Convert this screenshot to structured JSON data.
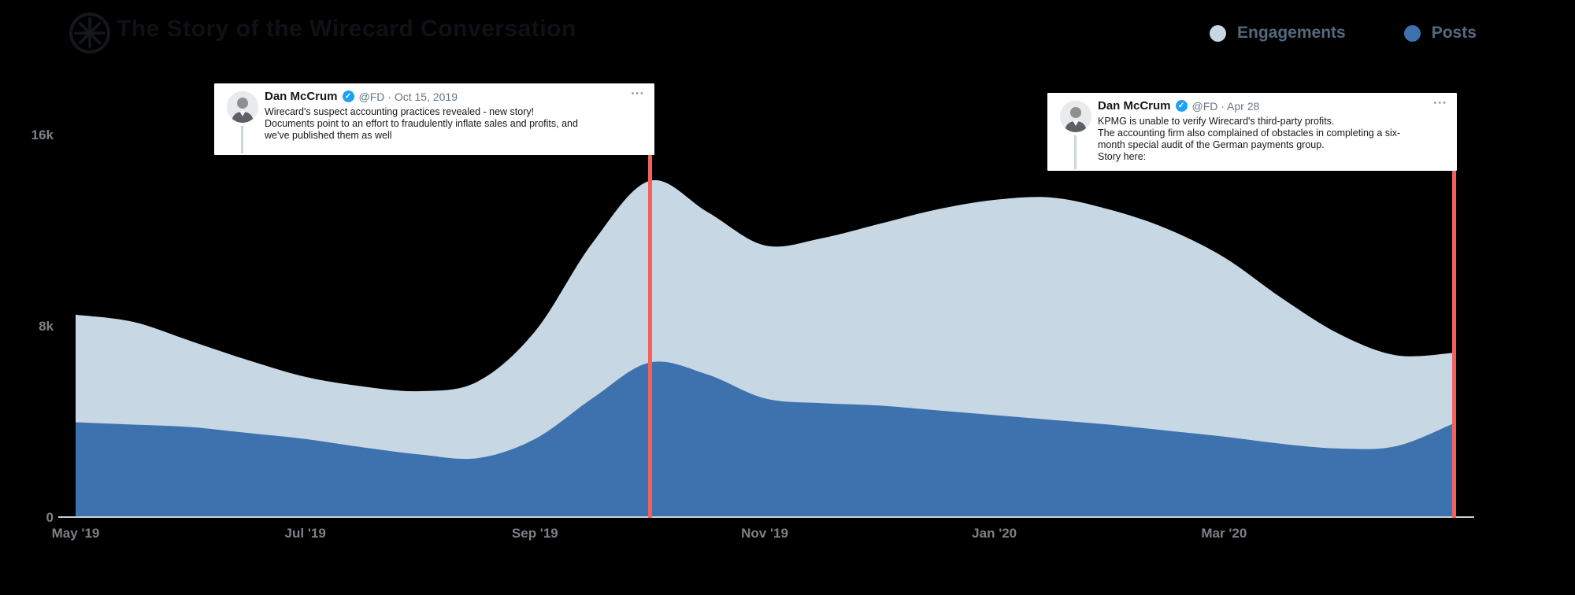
{
  "header": {
    "title": "The Story of the Wirecard Conversation",
    "logo": "compass-star-icon",
    "legend": [
      {
        "label": "Engagements",
        "color": "#c7d8e4"
      },
      {
        "label": "Posts",
        "color": "#3e72ae"
      }
    ]
  },
  "tweets": [
    {
      "name": "Dan McCrum",
      "verified": true,
      "meta": "@FD · Oct 15, 2019",
      "more_label": "•••",
      "lines": [
        "Wirecard's suspect accounting practices revealed - new story!",
        "Documents point to an effort to fraudulently inflate sales and profits, and",
        "we've published them as well"
      ]
    },
    {
      "name": "Dan McCrum",
      "verified": true,
      "meta": "@FD · Apr 28",
      "more_label": "•••",
      "lines": [
        "KPMG is unable to verify Wirecard's third-party profits.",
        "The accounting firm also complained of obstacles in completing a six-",
        "month special audit of the German payments group.",
        "Story here:"
      ]
    }
  ],
  "chart_data": {
    "type": "area",
    "title": "The Story of the Wirecard Conversation",
    "x_unit": "months since May 1, 2019 (0 = May '19, 12 = end of Apr '20)",
    "value_unit": "thousands",
    "xlabel": "",
    "ylabel": "",
    "ylim": [
      0,
      16
    ],
    "grid": false,
    "legend_position": "top-right",
    "x_ticks": [
      {
        "m": 0,
        "label": "May '19"
      },
      {
        "m": 2,
        "label": "Jul '19"
      },
      {
        "m": 4,
        "label": "Sep '19"
      },
      {
        "m": 6,
        "label": "Nov '19"
      },
      {
        "m": 8,
        "label": "Jan '20"
      },
      {
        "m": 10,
        "label": "Mar '20"
      }
    ],
    "y_ticks": [
      {
        "v": 0,
        "label": "0"
      },
      {
        "v": 8,
        "label": "8k"
      },
      {
        "v": 16,
        "label": "16k"
      }
    ],
    "series": [
      {
        "name": "Engagements",
        "color": "#c7d8e4",
        "points": [
          [
            0,
            8.5
          ],
          [
            0.5,
            8.2
          ],
          [
            1,
            7.4
          ],
          [
            1.5,
            6.6
          ],
          [
            2,
            5.9
          ],
          [
            2.5,
            5.5
          ],
          [
            3,
            5.3
          ],
          [
            3.5,
            5.7
          ],
          [
            4,
            7.8
          ],
          [
            4.5,
            11.5
          ],
          [
            5,
            14.1
          ],
          [
            5.5,
            12.8
          ],
          [
            6,
            11.4
          ],
          [
            6.5,
            11.7
          ],
          [
            7,
            12.3
          ],
          [
            7.5,
            12.9
          ],
          [
            8,
            13.3
          ],
          [
            8.5,
            13.4
          ],
          [
            9,
            12.9
          ],
          [
            9.5,
            12.1
          ],
          [
            10,
            10.9
          ],
          [
            10.5,
            9.2
          ],
          [
            11,
            7.7
          ],
          [
            11.5,
            6.8
          ],
          [
            12,
            6.9
          ]
        ]
      },
      {
        "name": "Posts",
        "color": "#3e72ae",
        "points": [
          [
            0,
            4.0
          ],
          [
            0.5,
            3.9
          ],
          [
            1,
            3.8
          ],
          [
            1.5,
            3.55
          ],
          [
            2,
            3.3
          ],
          [
            2.5,
            2.95
          ],
          [
            3,
            2.65
          ],
          [
            3.5,
            2.5
          ],
          [
            4,
            3.3
          ],
          [
            4.5,
            5.0
          ],
          [
            5,
            6.5
          ],
          [
            5.5,
            6.0
          ],
          [
            6,
            5.0
          ],
          [
            6.5,
            4.8
          ],
          [
            7,
            4.7
          ],
          [
            7.5,
            4.5
          ],
          [
            8,
            4.3
          ],
          [
            8.5,
            4.1
          ],
          [
            9,
            3.9
          ],
          [
            9.5,
            3.65
          ],
          [
            10,
            3.4
          ],
          [
            10.5,
            3.1
          ],
          [
            11,
            2.9
          ],
          [
            11.5,
            3.0
          ],
          [
            12,
            3.95
          ]
        ]
      }
    ],
    "annotations": [
      {
        "month": 5.0,
        "color": "#f4615c",
        "tweet": 0
      },
      {
        "month": 12.0,
        "color": "#f4615c",
        "tweet": 1
      }
    ]
  },
  "colors": {
    "background": "#000000",
    "axis_line": "#c7d0d9",
    "tick_text": "#7b8187",
    "legend_text": "#55697e",
    "event_line": "#f4615c",
    "card_bg": "#ffffff",
    "card_text": "#15181c",
    "card_meta": "#657786",
    "verified_badge": "#1da1f2",
    "thread_line": "#ccd6dd"
  }
}
